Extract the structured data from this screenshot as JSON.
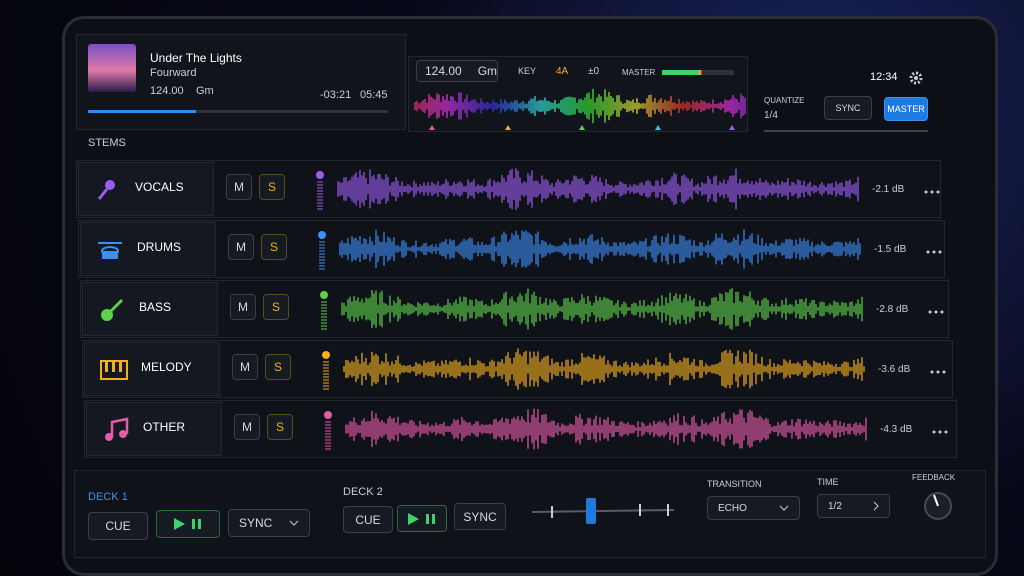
{
  "track": {
    "title": "Under The Lights",
    "artist": "Fourward",
    "bpm": "124.00",
    "key": "Gm",
    "remaining": "-03:21",
    "total": "05:45"
  },
  "toolbar": {
    "bpm": "124.00",
    "key": "Gm",
    "key_label": "KEY",
    "camelot": "4A",
    "pitch": "±0",
    "master_label": "MASTER"
  },
  "status": {
    "time": "12:34"
  },
  "quantize": {
    "label": "QUANTIZE",
    "value": "1/4",
    "sync": "SYNC",
    "master": "MASTER"
  },
  "stems": {
    "header": "STEMS",
    "items": [
      {
        "name": "VOCALS",
        "mute": "M",
        "solo": "S",
        "gain": "-2.1 dB",
        "color": "#9b5cf0"
      },
      {
        "name": "DRUMS",
        "mute": "M",
        "solo": "S",
        "gain": "-1.5 dB",
        "color": "#3d8ef5"
      },
      {
        "name": "BASS",
        "mute": "M",
        "solo": "S",
        "gain": "-2.8 dB",
        "color": "#5fd14a"
      },
      {
        "name": "MELODY",
        "mute": "M",
        "solo": "S",
        "gain": "-3.6 dB",
        "color": "#f2b01e"
      },
      {
        "name": "OTHER",
        "mute": "M",
        "solo": "S",
        "gain": "-4.3 dB",
        "color": "#e65aa8"
      }
    ]
  },
  "deck1": {
    "label": "DECK 1",
    "cue": "CUE",
    "sync": "SYNC"
  },
  "deck2": {
    "label": "DECK 2",
    "cue": "CUE",
    "sync": "SYNC"
  },
  "transition": {
    "label": "TRANSITION",
    "value": "ECHO"
  },
  "time": {
    "label": "TIME",
    "value": "1/2"
  },
  "feedback": {
    "label": "FEEDBACK"
  }
}
